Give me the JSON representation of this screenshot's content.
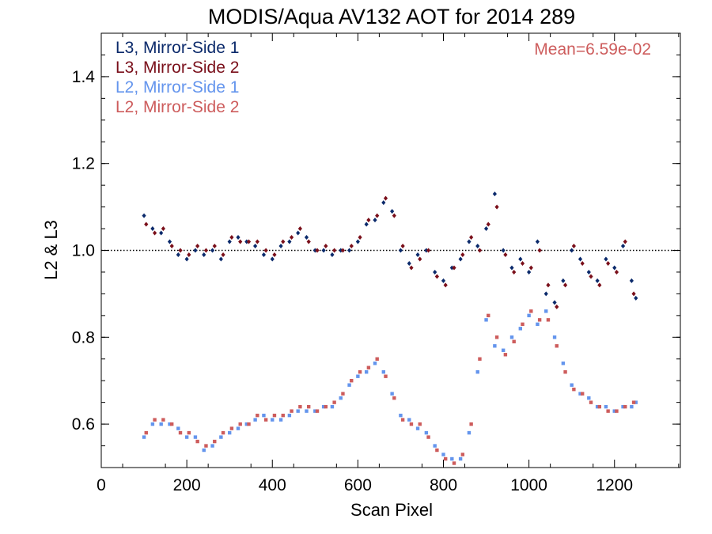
{
  "chart_data": {
    "type": "scatter",
    "title": "MODIS/Aqua AV132 AOT for 2014 289",
    "xlabel": "Scan Pixel",
    "ylabel": "L2 & L3",
    "xlim": [
      0,
      1354
    ],
    "ylim": [
      0.5,
      1.5
    ],
    "x_ticks": [
      0,
      200,
      400,
      600,
      800,
      1000,
      1200
    ],
    "y_ticks": [
      0.6,
      0.8,
      1.0,
      1.2,
      1.4
    ],
    "x_tick_labels": [
      "0",
      "200",
      "400",
      "600",
      "800",
      "1000",
      "1200"
    ],
    "y_tick_labels": [
      "0.6",
      "0.8",
      "1.0",
      "1.2",
      "1.4"
    ],
    "reference_line": {
      "y": 1.0,
      "style": "dotted"
    },
    "annotation": "Mean=6.59e-02",
    "annotation_color": "#cd5c5c",
    "legend_placement": "top-left",
    "grid": false,
    "series": [
      {
        "name": "L3, Mirror-Side 1",
        "color": "#0b2a6b",
        "marker": "diamond",
        "x": [
          100,
          120,
          140,
          160,
          180,
          200,
          220,
          240,
          260,
          280,
          300,
          320,
          340,
          360,
          380,
          400,
          420,
          440,
          460,
          480,
          500,
          520,
          540,
          560,
          580,
          600,
          620,
          640,
          660,
          680,
          700,
          720,
          740,
          760,
          780,
          800,
          820,
          840,
          860,
          880,
          900,
          920,
          940,
          960,
          980,
          1000,
          1020,
          1040,
          1060,
          1080,
          1100,
          1120,
          1140,
          1160,
          1180,
          1200,
          1220,
          1240,
          1250
        ],
        "y": [
          1.08,
          1.05,
          1.04,
          1.02,
          0.99,
          0.98,
          1.0,
          0.99,
          1.0,
          0.98,
          1.02,
          1.03,
          1.02,
          1.01,
          0.99,
          0.98,
          1.01,
          1.02,
          1.04,
          1.03,
          1.0,
          1.0,
          0.99,
          1.0,
          1.0,
          1.02,
          1.06,
          1.07,
          1.11,
          1.09,
          1.0,
          0.97,
          0.99,
          1.0,
          0.95,
          0.93,
          0.96,
          0.98,
          1.02,
          1.01,
          1.05,
          1.13,
          1.0,
          0.96,
          0.98,
          0.95,
          1.02,
          0.9,
          0.88,
          0.93,
          1.0,
          0.98,
          0.95,
          0.93,
          0.98,
          0.96,
          1.01,
          0.93,
          0.89
        ]
      },
      {
        "name": "L3, Mirror-Side 2",
        "color": "#7a0f1a",
        "marker": "diamond",
        "x": [
          105,
          125,
          145,
          165,
          185,
          205,
          225,
          245,
          265,
          285,
          305,
          325,
          345,
          365,
          385,
          405,
          425,
          445,
          465,
          485,
          505,
          525,
          545,
          565,
          585,
          605,
          625,
          645,
          665,
          685,
          705,
          725,
          745,
          765,
          785,
          805,
          825,
          845,
          865,
          885,
          905,
          925,
          945,
          965,
          985,
          1005,
          1025,
          1045,
          1065,
          1085,
          1105,
          1125,
          1145,
          1165,
          1185,
          1205,
          1225,
          1245
        ],
        "y": [
          1.06,
          1.04,
          1.05,
          1.01,
          1.0,
          0.99,
          1.01,
          1.0,
          1.01,
          0.99,
          1.03,
          1.02,
          1.02,
          1.02,
          1.0,
          0.99,
          1.02,
          1.03,
          1.05,
          1.02,
          1.0,
          1.01,
          1.0,
          1.0,
          1.01,
          1.03,
          1.07,
          1.08,
          1.12,
          1.08,
          1.01,
          0.96,
          0.98,
          1.0,
          0.94,
          0.92,
          0.96,
          0.99,
          1.03,
          1.0,
          1.06,
          1.1,
          0.99,
          0.95,
          0.97,
          0.96,
          1.0,
          0.92,
          0.87,
          0.92,
          1.01,
          0.97,
          0.94,
          0.92,
          0.97,
          0.95,
          1.02,
          0.9
        ]
      },
      {
        "name": "L2, Mirror-Side 1",
        "color": "#6495ed",
        "marker": "square",
        "x": [
          100,
          120,
          140,
          160,
          180,
          200,
          220,
          240,
          260,
          280,
          300,
          320,
          340,
          360,
          380,
          400,
          420,
          440,
          460,
          480,
          500,
          520,
          540,
          560,
          580,
          600,
          620,
          640,
          660,
          680,
          700,
          720,
          740,
          760,
          780,
          800,
          820,
          840,
          860,
          880,
          900,
          920,
          940,
          960,
          980,
          1000,
          1020,
          1040,
          1060,
          1080,
          1100,
          1120,
          1140,
          1160,
          1180,
          1200,
          1220,
          1240,
          1250
        ],
        "y": [
          0.57,
          0.6,
          0.6,
          0.6,
          0.59,
          0.57,
          0.57,
          0.54,
          0.55,
          0.57,
          0.58,
          0.59,
          0.6,
          0.61,
          0.62,
          0.61,
          0.61,
          0.62,
          0.63,
          0.63,
          0.63,
          0.64,
          0.64,
          0.66,
          0.69,
          0.71,
          0.72,
          0.74,
          0.72,
          0.67,
          0.62,
          0.61,
          0.59,
          0.58,
          0.55,
          0.53,
          0.52,
          0.52,
          0.58,
          0.72,
          0.84,
          0.78,
          0.77,
          0.8,
          0.82,
          0.85,
          0.83,
          0.86,
          0.8,
          0.74,
          0.69,
          0.67,
          0.66,
          0.64,
          0.64,
          0.63,
          0.64,
          0.64,
          0.65
        ]
      },
      {
        "name": "L2, Mirror-Side 2",
        "color": "#cd5c5c",
        "marker": "square",
        "x": [
          105,
          125,
          145,
          165,
          185,
          205,
          225,
          245,
          265,
          285,
          305,
          325,
          345,
          365,
          385,
          405,
          425,
          445,
          465,
          485,
          505,
          525,
          545,
          565,
          585,
          605,
          625,
          645,
          665,
          685,
          705,
          725,
          745,
          765,
          785,
          805,
          825,
          845,
          865,
          885,
          905,
          925,
          945,
          965,
          985,
          1005,
          1025,
          1045,
          1065,
          1085,
          1105,
          1125,
          1145,
          1165,
          1185,
          1205,
          1225,
          1245
        ],
        "y": [
          0.58,
          0.61,
          0.61,
          0.6,
          0.58,
          0.58,
          0.56,
          0.55,
          0.56,
          0.58,
          0.59,
          0.6,
          0.6,
          0.62,
          0.61,
          0.62,
          0.62,
          0.63,
          0.64,
          0.64,
          0.63,
          0.64,
          0.65,
          0.67,
          0.7,
          0.72,
          0.73,
          0.75,
          0.71,
          0.66,
          0.61,
          0.6,
          0.6,
          0.57,
          0.54,
          0.52,
          0.51,
          0.53,
          0.6,
          0.75,
          0.85,
          0.8,
          0.76,
          0.79,
          0.83,
          0.86,
          0.84,
          0.84,
          0.78,
          0.72,
          0.68,
          0.67,
          0.65,
          0.64,
          0.63,
          0.63,
          0.64,
          0.65
        ]
      }
    ]
  }
}
